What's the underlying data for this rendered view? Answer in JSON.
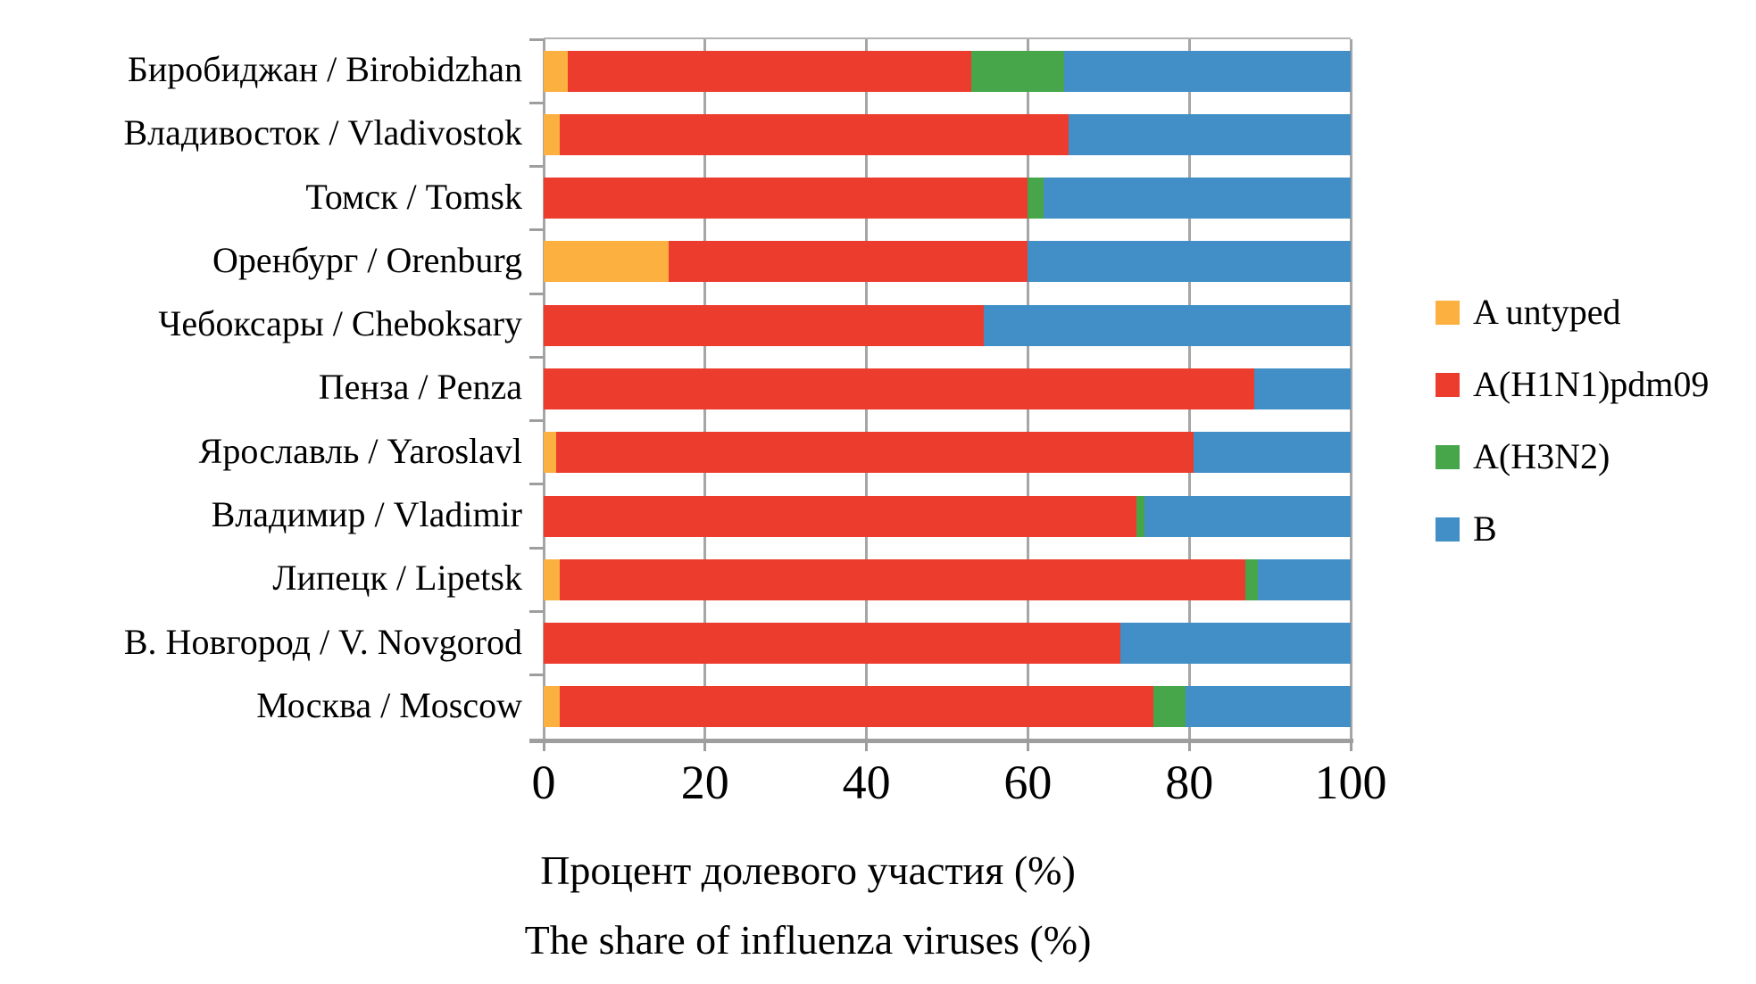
{
  "chart_data": {
    "type": "bar",
    "orientation": "horizontal",
    "stacked": true,
    "grid": true,
    "legend_position": "right",
    "xlim": [
      0,
      100
    ],
    "x_ticks": [
      0,
      20,
      40,
      60,
      80,
      100
    ],
    "xlabel_ru": "Процент долевого участия (%)",
    "xlabel_en": "The share of influenza viruses (%)",
    "grid_color": "#a6a6a6",
    "axis_color": "#9e9e9e",
    "categories": [
      "Биробиджан / Birobidzhan",
      "Владивосток / Vladivostok",
      "Томск / Tomsk",
      "Оренбург / Orenburg",
      "Чебоксары / Cheboksary",
      "Пенза / Penza",
      "Ярославль / Yaroslavl",
      "Владимир / Vladimir",
      "Липецк / Lipetsk",
      "В. Новгород / V. Novgorod",
      "Москва / Moscow"
    ],
    "series": [
      {
        "name": "A untyped",
        "key": "a-untyped",
        "color": "#FBB03F",
        "values": [
          3,
          2,
          0,
          15.5,
          0,
          0,
          1.5,
          0,
          2,
          0,
          2
        ]
      },
      {
        "name": "A(H1N1)pdm09",
        "key": "a-h1n1-pdm09",
        "color": "#EC3C2E",
        "values": [
          50,
          63,
          60,
          44.5,
          54.5,
          88,
          79,
          73.5,
          85,
          71.5,
          73.5
        ]
      },
      {
        "name": "A(H3N2)",
        "key": "a-h3n2",
        "color": "#47A64A",
        "values": [
          11.5,
          0,
          2,
          0,
          0,
          0,
          0,
          1,
          1.5,
          0,
          4
        ]
      },
      {
        "name": "B",
        "key": "b",
        "color": "#418FC6",
        "values": [
          35.5,
          35,
          38,
          40,
          45.5,
          12,
          19.5,
          25.5,
          11.5,
          28.5,
          20.5
        ]
      }
    ]
  }
}
